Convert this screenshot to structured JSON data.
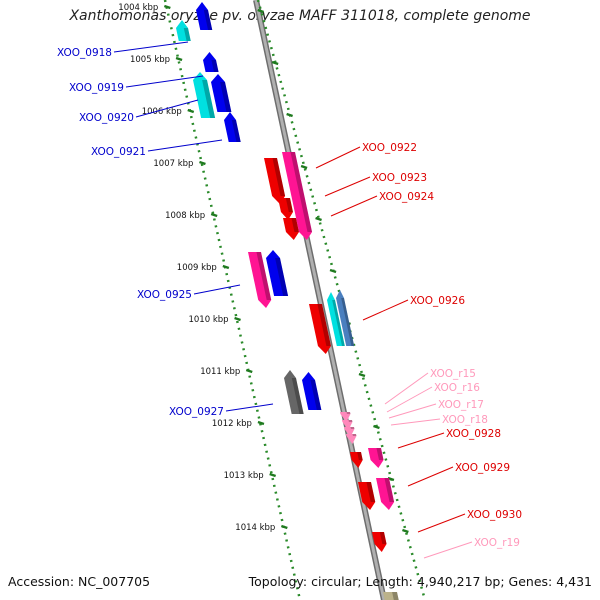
{
  "title": "Xanthomonas oryzae pv. oryzae MAFF 311018, complete genome",
  "footer": {
    "accession": "Accession: NC_007705",
    "summary": "Topology: circular; Length: 4,940,217 bp; Genes: 4,431"
  },
  "colors": {
    "forward_cds": "#0000ee",
    "forward_alt": "#00e0e0",
    "reverse_cds": "#ee0000",
    "reverse_alt": "#ff1493",
    "rna": "#ff88bb",
    "other": "#666666",
    "tick": "#2a8a2a",
    "backbone": "#909090"
  },
  "ticks": [
    {
      "label": "1004 kbp"
    },
    {
      "label": "1005 kbp"
    },
    {
      "label": "1006 kbp"
    },
    {
      "label": "1007 kbp"
    },
    {
      "label": "1008 kbp"
    },
    {
      "label": "1009 kbp"
    },
    {
      "label": "1010 kbp"
    },
    {
      "label": "1011 kbp"
    },
    {
      "label": "1012 kbp"
    },
    {
      "label": "1013 kbp"
    },
    {
      "label": "1014 kbp"
    }
  ],
  "genes_left": [
    {
      "name": "XOO_0918",
      "color": "#0000cc"
    },
    {
      "name": "XOO_0919",
      "color": "#0000cc"
    },
    {
      "name": "XOO_0920",
      "color": "#0000cc"
    },
    {
      "name": "XOO_0921",
      "color": "#0000cc"
    },
    {
      "name": "XOO_0925",
      "color": "#0000cc"
    },
    {
      "name": "XOO_0927",
      "color": "#0000cc"
    }
  ],
  "genes_right": [
    {
      "name": "XOO_0922",
      "color": "#dd0000"
    },
    {
      "name": "XOO_0923",
      "color": "#dd0000"
    },
    {
      "name": "XOO_0924",
      "color": "#dd0000"
    },
    {
      "name": "XOO_0926",
      "color": "#dd0000"
    },
    {
      "name": "XOO_r15",
      "color": "#ff99bb"
    },
    {
      "name": "XOO_r16",
      "color": "#ff99bb"
    },
    {
      "name": "XOO_r17",
      "color": "#ff99bb"
    },
    {
      "name": "XOO_r18",
      "color": "#ff99bb"
    },
    {
      "name": "XOO_0928",
      "color": "#dd0000"
    },
    {
      "name": "XOO_0929",
      "color": "#dd0000"
    },
    {
      "name": "XOO_0930",
      "color": "#dd0000"
    },
    {
      "name": "XOO_r19",
      "color": "#ff99bb"
    }
  ]
}
